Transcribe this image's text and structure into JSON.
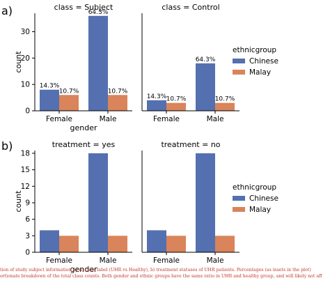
{
  "panel_labels": [
    "a)",
    "b)"
  ],
  "legend": {
    "title": "ethnicgroup",
    "entries": [
      {
        "label": "Chinese",
        "color": "#5470b0"
      },
      {
        "label": "Malay",
        "color": "#d9845a"
      }
    ]
  },
  "caption_lines": [
    "tion of study subject information by a) class label (UHR vs Healthy), b) treatment statuses of UHR patients. Percentages (as insets in the plot)",
    "ortionate breakdown of the total class counts. Both gender and ethnic groups have the same ratio in UHR and healthy group, and will likely not aff"
  ],
  "chart_data": [
    {
      "type": "bar",
      "group": "a",
      "facets": [
        {
          "title": "class =  Subject",
          "categories": [
            "Female",
            "Male"
          ],
          "series": [
            {
              "name": "Chinese",
              "values": [
                8,
                36
              ],
              "labels": [
                "14.3%",
                "64.3%"
              ]
            },
            {
              "name": "Malay",
              "values": [
                6,
                6
              ],
              "labels": [
                "10.7%",
                "10.7%"
              ]
            }
          ]
        },
        {
          "title": "class = Control",
          "categories": [
            "Female",
            "Male"
          ],
          "series": [
            {
              "name": "Chinese",
              "values": [
                4,
                18
              ],
              "labels": [
                "14.3%",
                "64.3%"
              ]
            },
            {
              "name": "Malay",
              "values": [
                3,
                3
              ],
              "labels": [
                "10.7%",
                "10.7%"
              ]
            }
          ]
        }
      ],
      "xlabel": "gender",
      "ylabel": "count",
      "ylim": [
        0,
        37
      ],
      "yticks": [
        0,
        10,
        20,
        30
      ]
    },
    {
      "type": "bar",
      "group": "b",
      "facets": [
        {
          "title": "treatment = yes",
          "categories": [
            "Female",
            "Male"
          ],
          "series": [
            {
              "name": "Chinese",
              "values": [
                4,
                18
              ]
            },
            {
              "name": "Malay",
              "values": [
                3,
                3
              ]
            }
          ]
        },
        {
          "title": "treatment = no",
          "categories": [
            "Female",
            "Male"
          ],
          "series": [
            {
              "name": "Chinese",
              "values": [
                4,
                18
              ]
            },
            {
              "name": "Malay",
              "values": [
                3,
                3
              ]
            }
          ]
        }
      ],
      "xlabel": "gender",
      "ylabel": "count",
      "ylim": [
        0,
        18.5
      ],
      "yticks": [
        0,
        3,
        6,
        9,
        12,
        15,
        18
      ]
    }
  ]
}
